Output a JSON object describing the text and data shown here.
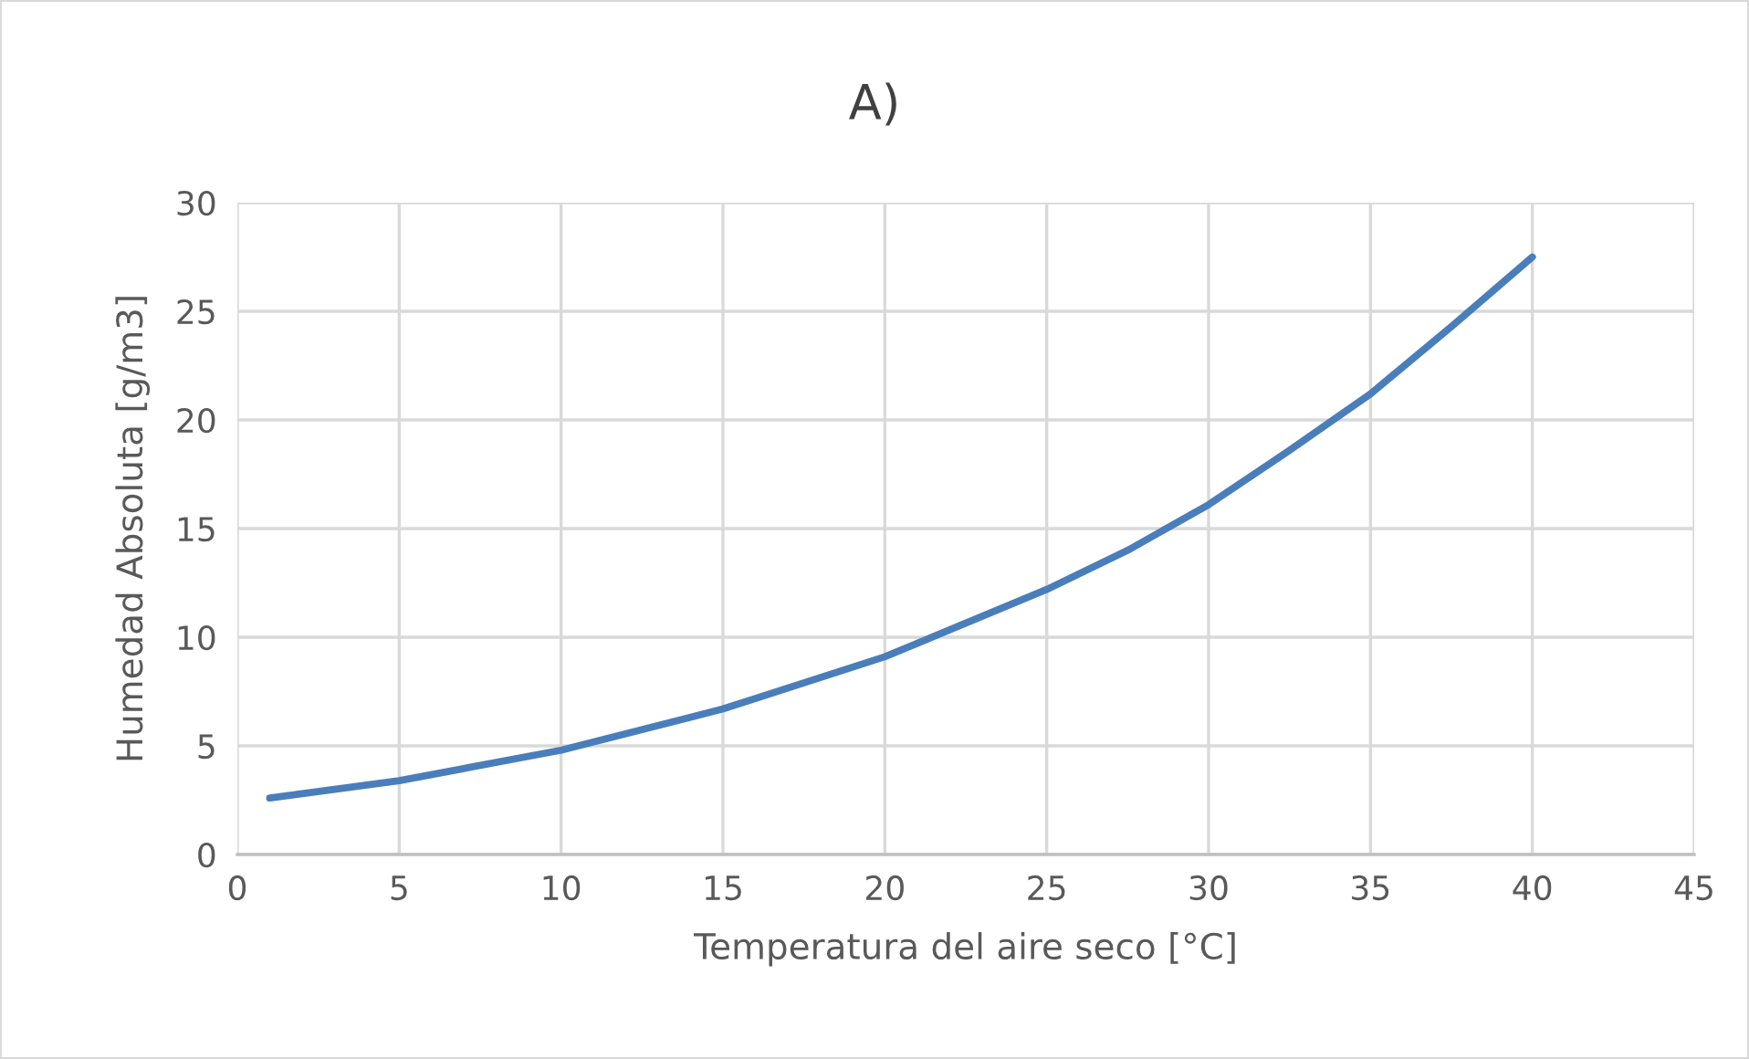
{
  "chart_data": {
    "type": "line",
    "title": "A)",
    "xlabel": "Temperatura del aire seco [°C]",
    "ylabel": "Humedad Absoluta [g/m3]",
    "series": [
      {
        "color": "#4a7ebb",
        "x": [
          1,
          5,
          10,
          15,
          20,
          25,
          27.5,
          30,
          32.5,
          35,
          37.5,
          40
        ],
        "values": [
          2.6,
          3.4,
          4.8,
          6.7,
          9.1,
          12.2,
          14.0,
          16.1,
          18.6,
          21.2,
          24.3,
          27.5
        ]
      }
    ],
    "xlim": [
      0,
      45
    ],
    "xticks": [
      0,
      5,
      10,
      15,
      20,
      25,
      30,
      35,
      40,
      45
    ],
    "ylim": [
      0,
      30
    ],
    "yticks": [
      0,
      5,
      10,
      15,
      20,
      25,
      30
    ],
    "grid": true,
    "marker": "none",
    "line_style": "solid"
  }
}
